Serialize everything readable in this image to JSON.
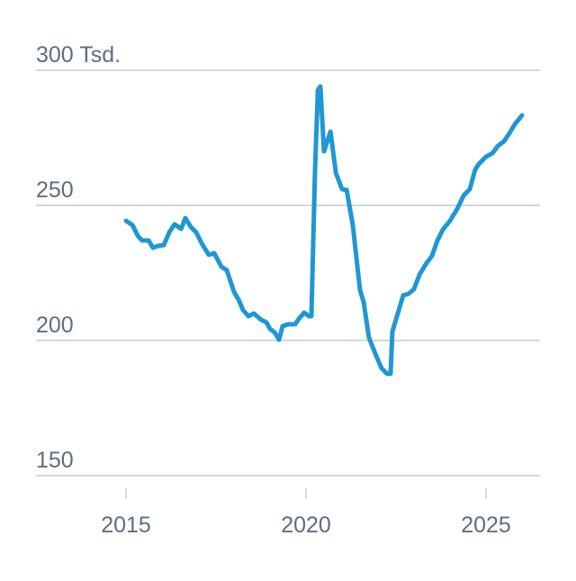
{
  "chart_data": {
    "type": "line",
    "x": [
      2015.0,
      2015.18,
      2015.33,
      2015.45,
      2015.63,
      2015.75,
      2015.88,
      2016.05,
      2016.2,
      2016.35,
      2016.53,
      2016.65,
      2016.8,
      2016.95,
      2017.13,
      2017.3,
      2017.45,
      2017.65,
      2017.8,
      2018.0,
      2018.13,
      2018.25,
      2018.4,
      2018.55,
      2018.75,
      2018.9,
      2019.0,
      2019.13,
      2019.25,
      2019.35,
      2019.5,
      2019.7,
      2019.8,
      2019.95,
      2020.08,
      2020.15,
      2020.25,
      2020.33,
      2020.4,
      2020.5,
      2020.68,
      2020.83,
      2021.0,
      2021.13,
      2021.3,
      2021.5,
      2021.6,
      2021.75,
      2021.95,
      2022.1,
      2022.25,
      2022.35,
      2022.4,
      2022.55,
      2022.7,
      2022.85,
      2023.0,
      2023.15,
      2023.35,
      2023.5,
      2023.65,
      2023.8,
      2024.0,
      2024.2,
      2024.38,
      2024.55,
      2024.7,
      2024.8,
      2025.0,
      2025.18,
      2025.33,
      2025.5,
      2025.65,
      2025.8,
      2026.0
    ],
    "series": [
      {
        "color": "#1f97d4",
        "values": [
          244.3,
          242.7,
          238.7,
          237,
          237,
          234.3,
          235,
          235.3,
          240,
          243,
          241.3,
          245.3,
          242,
          240,
          235.3,
          231.7,
          232.3,
          227.3,
          226,
          218,
          215,
          211.3,
          209,
          210,
          207.7,
          206.7,
          204.3,
          203,
          200.3,
          205.3,
          206,
          206,
          208,
          210.3,
          209,
          209,
          262.7,
          292.7,
          294,
          270,
          277.3,
          262,
          256,
          255.7,
          242.7,
          218.7,
          214.3,
          201,
          194.3,
          189.7,
          187.7,
          187.7,
          203.3,
          210,
          216.7,
          217.3,
          219,
          224.3,
          228.7,
          231.3,
          237,
          241,
          244.3,
          248.7,
          253.7,
          256,
          263.3,
          265.3,
          268,
          269.3,
          272,
          273.7,
          276.7,
          280,
          283.3
        ]
      }
    ],
    "xlim": [
      2012.5,
      2026.5
    ],
    "xticks": [
      2015,
      2020,
      2025
    ],
    "ylim": [
      150,
      300
    ],
    "yticks": [
      150,
      200,
      250,
      {
        "value": 300,
        "label": "300 Tsd."
      }
    ],
    "grid": true
  }
}
